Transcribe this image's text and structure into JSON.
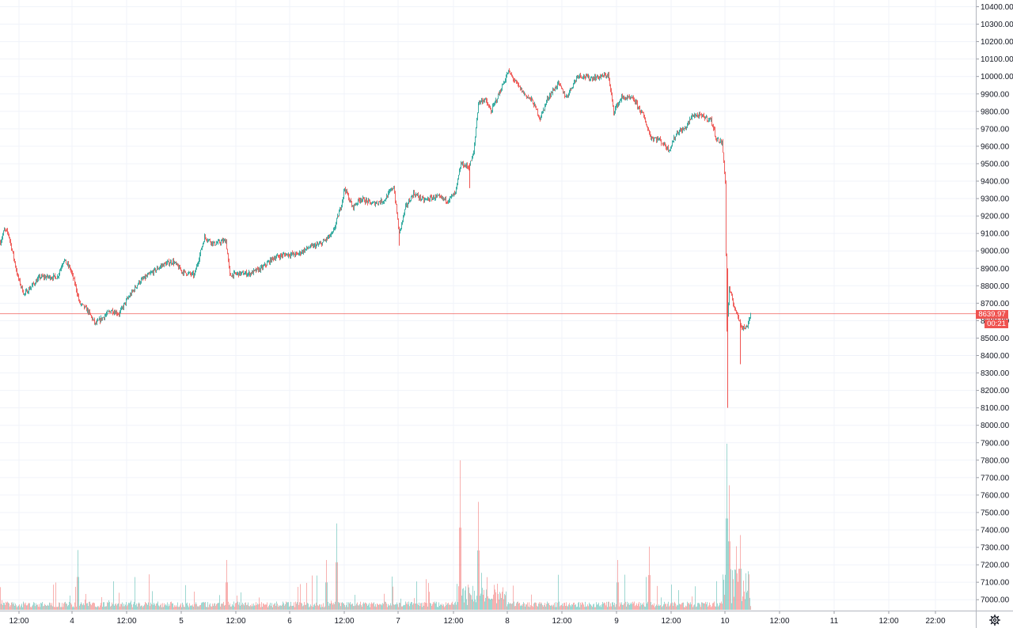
{
  "chart_data": {
    "type": "candlestick",
    "y_axis": {
      "ticks": [
        "10400.00",
        "10300.00",
        "10200.00",
        "10100.00",
        "10000.00",
        "9900.00",
        "9800.00",
        "9700.00",
        "9600.00",
        "9500.00",
        "9400.00",
        "9300.00",
        "9200.00",
        "9100.00",
        "9000.00",
        "8900.00",
        "8800.00",
        "8700.00",
        "8600.00",
        "8500.00",
        "8400.00",
        "8300.00",
        "8200.00",
        "8100.00",
        "8000.00",
        "7900.00",
        "7800.00",
        "7700.00",
        "7600.00",
        "7500.00",
        "7400.00",
        "7300.00",
        "7200.00",
        "7100.00",
        "7000.00"
      ],
      "range": [
        6980,
        10440
      ],
      "position": "right"
    },
    "x_axis": {
      "ticks": [
        "12:00",
        "4",
        "12:00",
        "5",
        "12:00",
        "6",
        "12:00",
        "7",
        "12:00",
        "8",
        "12:00",
        "9",
        "12:00",
        "10",
        "12:00",
        "11",
        "12:00",
        "22:00"
      ]
    },
    "last_price": {
      "label": "8639.97",
      "value": 8639.97,
      "countdown": "00:21",
      "color": "#ef5350"
    },
    "colors": {
      "up": "#26a69a",
      "down": "#ef5350",
      "grid": "#f0f3fa",
      "axis_text": "#131722"
    },
    "grid": true,
    "price_path": [
      {
        "t": 0,
        "p": 9050
      },
      {
        "t": 5,
        "p": 9120
      },
      {
        "t": 10,
        "p": 9100
      },
      {
        "t": 15,
        "p": 9000
      },
      {
        "t": 22,
        "p": 8850
      },
      {
        "t": 30,
        "p": 8750
      },
      {
        "t": 40,
        "p": 8800
      },
      {
        "t": 50,
        "p": 8850
      },
      {
        "t": 62,
        "p": 8850
      },
      {
        "t": 72,
        "p": 8850
      },
      {
        "t": 80,
        "p": 8950
      },
      {
        "t": 88,
        "p": 8900
      },
      {
        "t": 95,
        "p": 8800
      },
      {
        "t": 100,
        "p": 8700
      },
      {
        "t": 110,
        "p": 8660
      },
      {
        "t": 120,
        "p": 8580
      },
      {
        "t": 130,
        "p": 8620
      },
      {
        "t": 140,
        "p": 8660
      },
      {
        "t": 150,
        "p": 8640
      },
      {
        "t": 160,
        "p": 8720
      },
      {
        "t": 175,
        "p": 8820
      },
      {
        "t": 190,
        "p": 8870
      },
      {
        "t": 205,
        "p": 8920
      },
      {
        "t": 218,
        "p": 8940
      },
      {
        "t": 230,
        "p": 8880
      },
      {
        "t": 245,
        "p": 8860
      },
      {
        "t": 258,
        "p": 9080
      },
      {
        "t": 270,
        "p": 9040
      },
      {
        "t": 285,
        "p": 9060
      },
      {
        "t": 290,
        "p": 8860
      },
      {
        "t": 300,
        "p": 8870
      },
      {
        "t": 315,
        "p": 8870
      },
      {
        "t": 330,
        "p": 8900
      },
      {
        "t": 345,
        "p": 8960
      },
      {
        "t": 360,
        "p": 8980
      },
      {
        "t": 375,
        "p": 8980
      },
      {
        "t": 390,
        "p": 9020
      },
      {
        "t": 405,
        "p": 9040
      },
      {
        "t": 420,
        "p": 9100
      },
      {
        "t": 430,
        "p": 9250
      },
      {
        "t": 435,
        "p": 9360
      },
      {
        "t": 445,
        "p": 9250
      },
      {
        "t": 455,
        "p": 9300
      },
      {
        "t": 470,
        "p": 9270
      },
      {
        "t": 485,
        "p": 9290
      },
      {
        "t": 497,
        "p": 9370
      },
      {
        "t": 504,
        "p": 9100
      },
      {
        "t": 512,
        "p": 9250
      },
      {
        "t": 522,
        "p": 9330
      },
      {
        "t": 535,
        "p": 9290
      },
      {
        "t": 550,
        "p": 9310
      },
      {
        "t": 565,
        "p": 9290
      },
      {
        "t": 575,
        "p": 9330
      },
      {
        "t": 582,
        "p": 9500
      },
      {
        "t": 592,
        "p": 9480
      },
      {
        "t": 598,
        "p": 9560
      },
      {
        "t": 604,
        "p": 9850
      },
      {
        "t": 612,
        "p": 9870
      },
      {
        "t": 620,
        "p": 9800
      },
      {
        "t": 630,
        "p": 9900
      },
      {
        "t": 642,
        "p": 10030
      },
      {
        "t": 652,
        "p": 9960
      },
      {
        "t": 662,
        "p": 9900
      },
      {
        "t": 672,
        "p": 9860
      },
      {
        "t": 682,
        "p": 9760
      },
      {
        "t": 692,
        "p": 9880
      },
      {
        "t": 705,
        "p": 9960
      },
      {
        "t": 715,
        "p": 9880
      },
      {
        "t": 730,
        "p": 10010
      },
      {
        "t": 745,
        "p": 9990
      },
      {
        "t": 760,
        "p": 10000
      },
      {
        "t": 768,
        "p": 10010
      },
      {
        "t": 775,
        "p": 9800
      },
      {
        "t": 785,
        "p": 9880
      },
      {
        "t": 800,
        "p": 9870
      },
      {
        "t": 812,
        "p": 9780
      },
      {
        "t": 822,
        "p": 9650
      },
      {
        "t": 832,
        "p": 9640
      },
      {
        "t": 845,
        "p": 9580
      },
      {
        "t": 855,
        "p": 9680
      },
      {
        "t": 865,
        "p": 9700
      },
      {
        "t": 875,
        "p": 9780
      },
      {
        "t": 888,
        "p": 9770
      },
      {
        "t": 898,
        "p": 9750
      },
      {
        "t": 905,
        "p": 9640
      },
      {
        "t": 912,
        "p": 9620
      },
      {
        "t": 916,
        "p": 9400
      },
      {
        "t": 918,
        "p": 8550
      },
      {
        "t": 921,
        "p": 8780
      },
      {
        "t": 926,
        "p": 8700
      },
      {
        "t": 932,
        "p": 8620
      },
      {
        "t": 938,
        "p": 8560
      },
      {
        "t": 943,
        "p": 8560
      },
      {
        "t": 948,
        "p": 8640
      }
    ],
    "spikes": [
      {
        "t": 504,
        "low": 9030
      },
      {
        "t": 593,
        "low": 9360
      },
      {
        "t": 919,
        "low": 8100,
        "high": 8900
      },
      {
        "t": 935,
        "low": 8350
      }
    ],
    "volume_peaks": [
      {
        "t": 425,
        "v": 0.52
      },
      {
        "t": 581,
        "v": 0.9
      },
      {
        "t": 604,
        "v": 0.65
      },
      {
        "t": 286,
        "v": 0.3
      },
      {
        "t": 98,
        "v": 0.36
      },
      {
        "t": 918,
        "v": 1.0
      },
      {
        "t": 921,
        "v": 0.75
      },
      {
        "t": 935,
        "v": 0.45
      },
      {
        "t": 820,
        "v": 0.38
      },
      {
        "t": 780,
        "v": 0.3
      },
      {
        "t": 412,
        "v": 0.3
      }
    ]
  },
  "settings": {
    "icon": "gear-icon"
  }
}
